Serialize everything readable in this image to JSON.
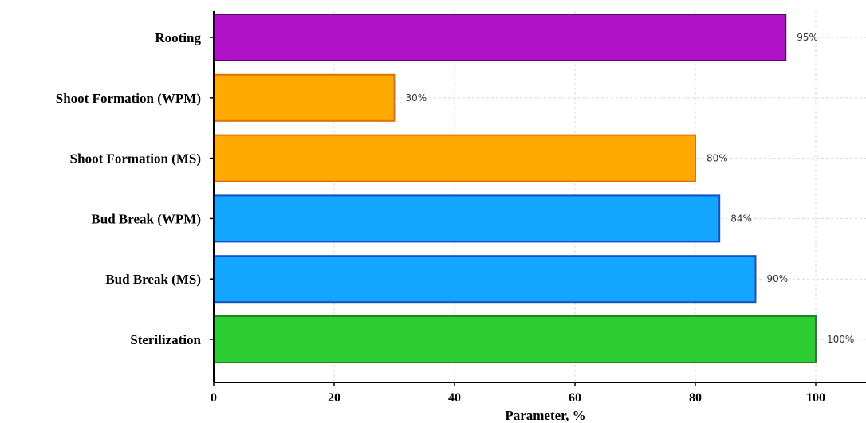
{
  "chart_data": {
    "type": "bar",
    "orientation": "horizontal",
    "categories": [
      "Rooting",
      "Shoot Formation (WPM)",
      "Shoot Formation (MS)",
      "Bud Break (WPM)",
      "Bud Break (MS)",
      "Sterilization"
    ],
    "values": [
      95,
      30,
      80,
      84,
      90,
      100
    ],
    "value_labels": [
      "95%",
      "30%",
      "80%",
      "84%",
      "90%",
      "100%"
    ],
    "bar_colors": [
      "#b012c8",
      "#ffaa00",
      "#ffaa00",
      "#12a6ff",
      "#12a6ff",
      "#2ecc33"
    ],
    "bar_edge_colors": [
      "#5a0a66",
      "#e07000",
      "#e07000",
      "#1450c8",
      "#1450c8",
      "#1a8a1f"
    ],
    "xlabel": "Parameter, %",
    "ylabel": "",
    "title": "",
    "xlim": [
      0,
      105
    ],
    "xticks": [
      0,
      20,
      40,
      60,
      80,
      100
    ],
    "grid": true
  }
}
